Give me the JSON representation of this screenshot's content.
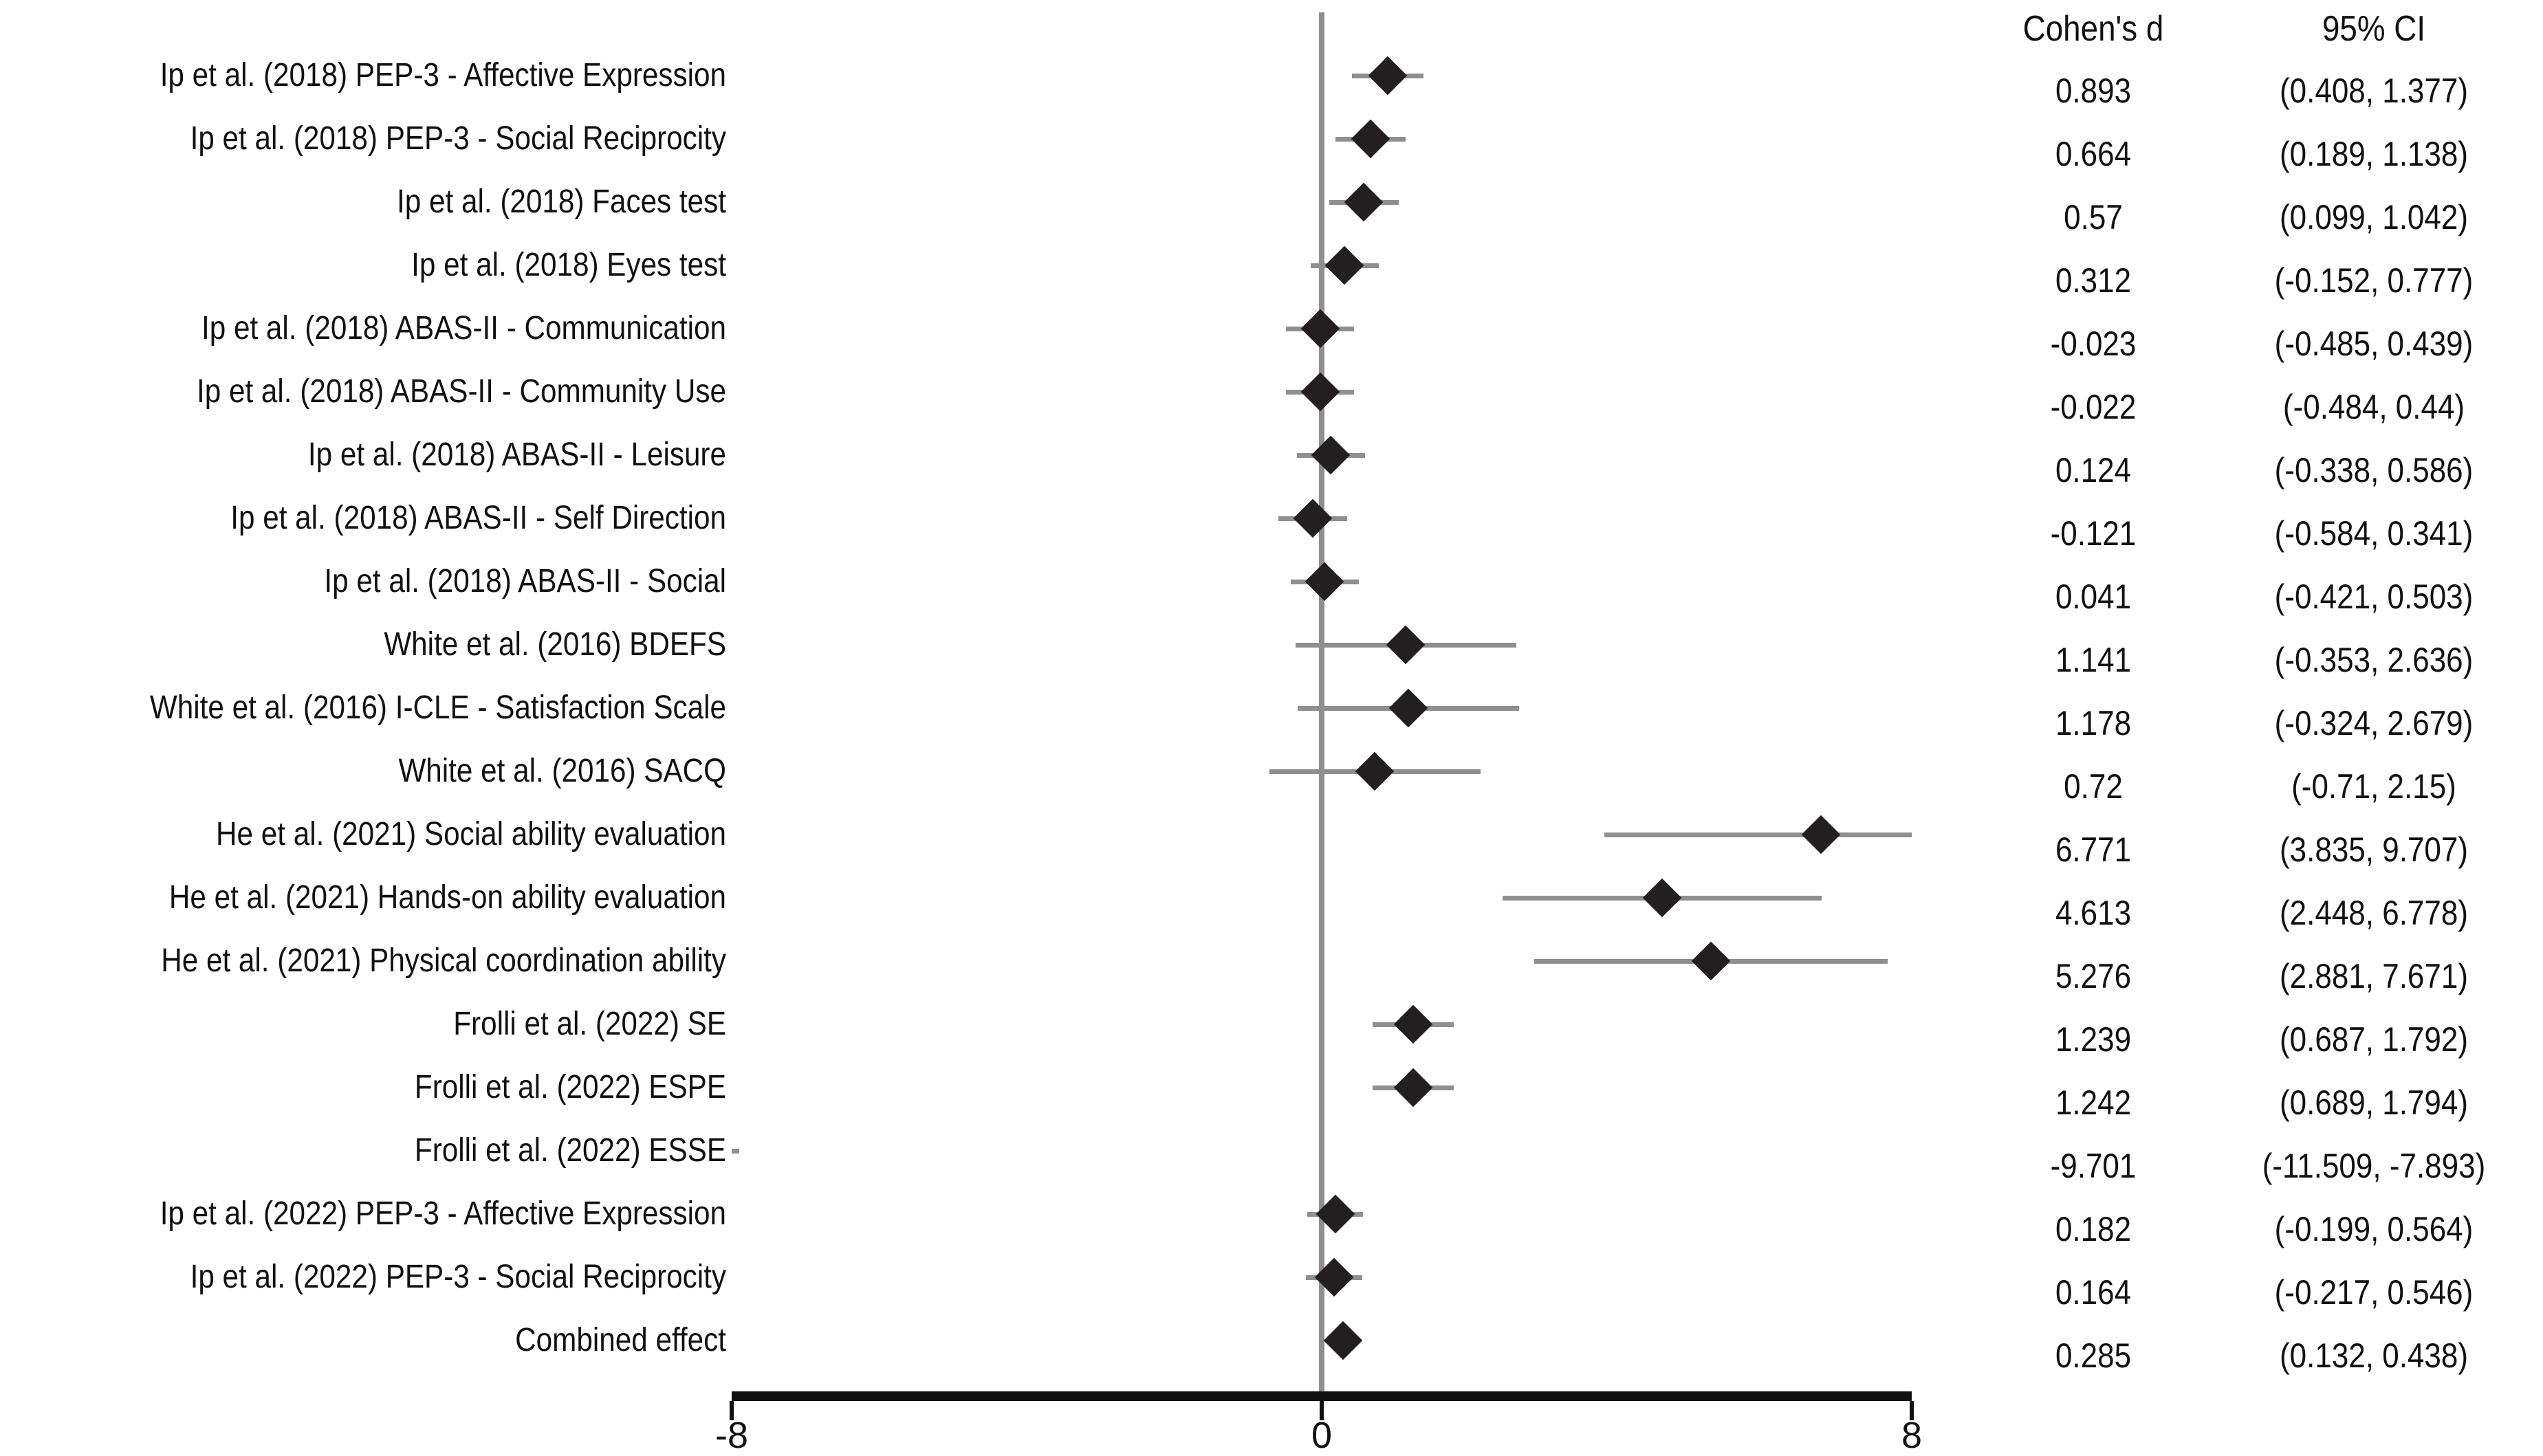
{
  "chart_data": {
    "type": "forest",
    "title": "",
    "columns": {
      "effect": "Cohen's d",
      "ci": "95% CI"
    },
    "axis": {
      "min": -8,
      "max": 8,
      "ticks": [
        -8,
        0,
        8
      ],
      "tick_labels": [
        "-8",
        "0",
        "8"
      ],
      "zero_line": 0,
      "grid": false
    },
    "colors": {
      "marker": "#231f20",
      "ci_line": "#8f8f8f",
      "zero_line": "#8f8f8f",
      "axis_line": "#111111",
      "text": "#111111",
      "background": "#ffffff"
    },
    "rows": [
      {
        "label": "Ip et al. (2018) PEP-3 - Affective Expression",
        "d": 0.893,
        "lo": 0.408,
        "hi": 1.377,
        "d_text": "0.893",
        "ci_text": "(0.408, 1.377)"
      },
      {
        "label": "Ip et al. (2018) PEP-3 - Social Reciprocity",
        "d": 0.664,
        "lo": 0.189,
        "hi": 1.138,
        "d_text": "0.664",
        "ci_text": "(0.189, 1.138)"
      },
      {
        "label": "Ip et al. (2018) Faces test",
        "d": 0.57,
        "lo": 0.099,
        "hi": 1.042,
        "d_text": "0.57",
        "ci_text": "(0.099, 1.042)"
      },
      {
        "label": "Ip et al. (2018) Eyes test",
        "d": 0.312,
        "lo": -0.152,
        "hi": 0.777,
        "d_text": "0.312",
        "ci_text": "(-0.152, 0.777)"
      },
      {
        "label": "Ip et al. (2018) ABAS-II - Communication",
        "d": -0.023,
        "lo": -0.485,
        "hi": 0.439,
        "d_text": "-0.023",
        "ci_text": "(-0.485, 0.439)"
      },
      {
        "label": "Ip et al. (2018) ABAS-II - Community Use",
        "d": -0.022,
        "lo": -0.484,
        "hi": 0.44,
        "d_text": "-0.022",
        "ci_text": "(-0.484, 0.44)"
      },
      {
        "label": "Ip et al. (2018) ABAS-II - Leisure",
        "d": 0.124,
        "lo": -0.338,
        "hi": 0.586,
        "d_text": "0.124",
        "ci_text": "(-0.338, 0.586)"
      },
      {
        "label": "Ip et al. (2018) ABAS-II - Self Direction",
        "d": -0.121,
        "lo": -0.584,
        "hi": 0.341,
        "d_text": "-0.121",
        "ci_text": "(-0.584, 0.341)"
      },
      {
        "label": "Ip et al. (2018) ABAS-II - Social",
        "d": 0.041,
        "lo": -0.421,
        "hi": 0.503,
        "d_text": "0.041",
        "ci_text": "(-0.421, 0.503)"
      },
      {
        "label": "White et al. (2016) BDEFS",
        "d": 1.141,
        "lo": -0.353,
        "hi": 2.636,
        "d_text": "1.141",
        "ci_text": "(-0.353, 2.636)"
      },
      {
        "label": "White et al. (2016) I-CLE - Satisfaction Scale",
        "d": 1.178,
        "lo": -0.324,
        "hi": 2.679,
        "d_text": "1.178",
        "ci_text": "(-0.324, 2.679)"
      },
      {
        "label": "White et al. (2016) SACQ",
        "d": 0.72,
        "lo": -0.71,
        "hi": 2.15,
        "d_text": "0.72",
        "ci_text": "(-0.71, 2.15)"
      },
      {
        "label": "He et al. (2021) Social ability evaluation",
        "d": 6.771,
        "lo": 3.835,
        "hi": 9.707,
        "d_text": "6.771",
        "ci_text": "(3.835, 9.707)"
      },
      {
        "label": "He et al. (2021) Hands-on ability evaluation",
        "d": 4.613,
        "lo": 2.448,
        "hi": 6.778,
        "d_text": "4.613",
        "ci_text": "(2.448, 6.778)"
      },
      {
        "label": "He et al. (2021) Physical coordination ability",
        "d": 5.276,
        "lo": 2.881,
        "hi": 7.671,
        "d_text": "5.276",
        "ci_text": "(2.881, 7.671)"
      },
      {
        "label": "Frolli et al. (2022) SE",
        "d": 1.239,
        "lo": 0.687,
        "hi": 1.792,
        "d_text": "1.239",
        "ci_text": "(0.687, 1.792)"
      },
      {
        "label": "Frolli et al. (2022) ESPE",
        "d": 1.242,
        "lo": 0.689,
        "hi": 1.794,
        "d_text": "1.242",
        "ci_text": "(0.689, 1.794)"
      },
      {
        "label": "Frolli et al. (2022) ESSE",
        "d": -9.701,
        "lo": -11.509,
        "hi": -7.893,
        "d_text": "-9.701",
        "ci_text": "(-11.509, -7.893)"
      },
      {
        "label": "Ip et al. (2022) PEP-3 - Affective Expression",
        "d": 0.182,
        "lo": -0.199,
        "hi": 0.564,
        "d_text": "0.182",
        "ci_text": "(-0.199, 0.564)"
      },
      {
        "label": "Ip et al. (2022) PEP-3 - Social Reciprocity",
        "d": 0.164,
        "lo": -0.217,
        "hi": 0.546,
        "d_text": "0.164",
        "ci_text": "(-0.217, 0.546)"
      },
      {
        "label": "Combined effect",
        "d": 0.285,
        "lo": 0.132,
        "hi": 0.438,
        "d_text": "0.285",
        "ci_text": "(0.132, 0.438)"
      }
    ]
  }
}
